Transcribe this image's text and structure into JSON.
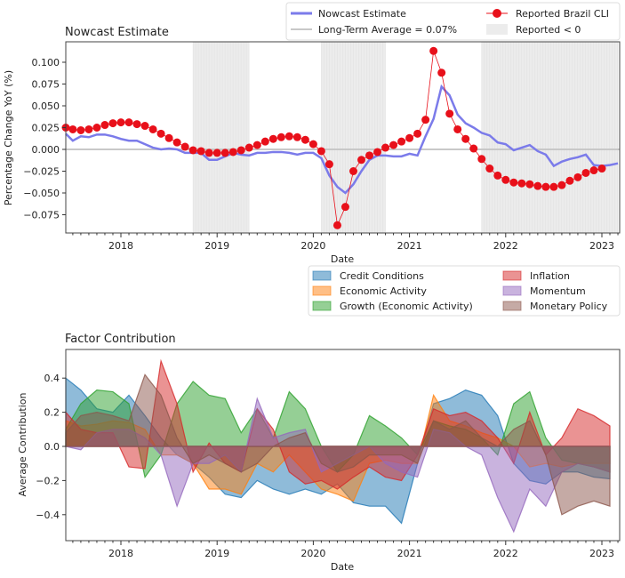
{
  "chart_data": [
    {
      "type": "line",
      "title": "Nowcast Estimate",
      "xlabel": "Date",
      "ylabel": "Percentage Change YoY (%)",
      "xlim": [
        "2017-06",
        "2023-03"
      ],
      "ylim": [
        -0.096,
        0.123
      ],
      "x_ticks": [
        "2018",
        "2019",
        "2020",
        "2021",
        "2022",
        "2023"
      ],
      "y_ticks": [
        "0.100",
        "0.075",
        "0.050",
        "0.025",
        "0.000",
        "−0.025",
        "−0.050",
        "−0.075"
      ],
      "y_tick_values": [
        0.1,
        0.075,
        0.05,
        0.025,
        0,
        -0.025,
        -0.05,
        -0.075
      ],
      "legend_position": "top-right",
      "legend": {
        "nowcast": "Nowcast Estimate",
        "long_term": "Long-Term Average = 0.07%",
        "reported": "Reported Brazil CLI",
        "shaded": "Reported < 0"
      },
      "colors": {
        "nowcast": "#7b7bea",
        "reported": "#e8101a",
        "long_term": "#c8c8c8",
        "shaded": "#ececec"
      },
      "shaded_regions": [
        [
          "2018-10",
          "2019-05"
        ],
        [
          "2020-02",
          "2020-10"
        ],
        [
          "2021-10",
          "2023-03"
        ]
      ],
      "long_term_average_value": 0,
      "series": [
        {
          "name": "Nowcast Estimate",
          "style": "line",
          "x": [
            "2017-06",
            "2017-07",
            "2017-08",
            "2017-09",
            "2017-10",
            "2017-11",
            "2017-12",
            "2018-01",
            "2018-02",
            "2018-03",
            "2018-04",
            "2018-05",
            "2018-06",
            "2018-07",
            "2018-08",
            "2018-09",
            "2018-10",
            "2018-11",
            "2018-12",
            "2019-01",
            "2019-02",
            "2019-03",
            "2019-04",
            "2019-05",
            "2019-06",
            "2019-07",
            "2019-08",
            "2019-09",
            "2019-10",
            "2019-11",
            "2019-12",
            "2020-01",
            "2020-02",
            "2020-03",
            "2020-04",
            "2020-05",
            "2020-06",
            "2020-07",
            "2020-08",
            "2020-09",
            "2020-10",
            "2020-11",
            "2020-12",
            "2021-01",
            "2021-02",
            "2021-03",
            "2021-04",
            "2021-05",
            "2021-06",
            "2021-07",
            "2021-08",
            "2021-09",
            "2021-10",
            "2021-11",
            "2021-12",
            "2022-01",
            "2022-02",
            "2022-03",
            "2022-04",
            "2022-05",
            "2022-06",
            "2022-07",
            "2022-08",
            "2022-09",
            "2022-10",
            "2022-11",
            "2022-12",
            "2023-01",
            "2023-02",
            "2023-03"
          ],
          "y": [
            0.018,
            0.01,
            0.015,
            0.014,
            0.017,
            0.017,
            0.015,
            0.012,
            0.01,
            0.01,
            0.006,
            0.002,
            0.0,
            0.001,
            0.0,
            -0.004,
            -0.004,
            -0.004,
            -0.012,
            -0.012,
            -0.008,
            -0.004,
            -0.006,
            -0.007,
            -0.004,
            -0.004,
            -0.003,
            -0.003,
            -0.004,
            -0.006,
            -0.004,
            -0.004,
            -0.01,
            -0.03,
            -0.043,
            -0.05,
            -0.04,
            -0.025,
            -0.012,
            -0.007,
            -0.007,
            -0.008,
            -0.008,
            -0.005,
            -0.007,
            0.015,
            0.035,
            0.072,
            0.062,
            0.04,
            0.03,
            0.025,
            0.019,
            0.016,
            0.008,
            0.006,
            -0.001,
            0.002,
            0.005,
            -0.002,
            -0.006,
            -0.019,
            -0.014,
            -0.011,
            -0.009,
            -0.006,
            -0.018,
            -0.019,
            -0.018,
            -0.016
          ]
        },
        {
          "name": "Reported Brazil CLI",
          "style": "line+markers",
          "x": [
            "2017-06",
            "2017-07",
            "2017-08",
            "2017-09",
            "2017-10",
            "2017-11",
            "2017-12",
            "2018-01",
            "2018-02",
            "2018-03",
            "2018-04",
            "2018-05",
            "2018-06",
            "2018-07",
            "2018-08",
            "2018-09",
            "2018-10",
            "2018-11",
            "2018-12",
            "2019-01",
            "2019-02",
            "2019-03",
            "2019-04",
            "2019-05",
            "2019-06",
            "2019-07",
            "2019-08",
            "2019-09",
            "2019-10",
            "2019-11",
            "2019-12",
            "2020-01",
            "2020-02",
            "2020-03",
            "2020-04",
            "2020-05",
            "2020-06",
            "2020-07",
            "2020-08",
            "2020-09",
            "2020-10",
            "2020-11",
            "2020-12",
            "2021-01",
            "2021-02",
            "2021-03",
            "2021-04",
            "2021-05",
            "2021-06",
            "2021-07",
            "2021-08",
            "2021-09",
            "2021-10",
            "2021-11",
            "2021-12",
            "2022-01",
            "2022-02",
            "2022-03",
            "2022-04",
            "2022-05",
            "2022-06",
            "2022-07",
            "2022-08",
            "2022-09",
            "2022-10",
            "2022-11",
            "2022-12",
            "2023-01"
          ],
          "y": [
            0.025,
            0.023,
            0.022,
            0.023,
            0.025,
            0.028,
            0.03,
            0.031,
            0.031,
            0.029,
            0.027,
            0.023,
            0.018,
            0.013,
            0.008,
            0.003,
            -0.001,
            -0.002,
            -0.004,
            -0.004,
            -0.004,
            -0.003,
            -0.001,
            0.002,
            0.005,
            0.009,
            0.012,
            0.014,
            0.015,
            0.014,
            0.011,
            0.006,
            -0.002,
            -0.017,
            -0.087,
            -0.066,
            -0.025,
            -0.012,
            -0.007,
            -0.003,
            0.002,
            0.005,
            0.009,
            0.013,
            0.018,
            0.034,
            0.113,
            0.088,
            0.041,
            0.023,
            0.012,
            0.001,
            -0.011,
            -0.022,
            -0.03,
            -0.035,
            -0.038,
            -0.039,
            -0.04,
            -0.042,
            -0.043,
            -0.043,
            -0.041,
            -0.036,
            -0.032,
            -0.027,
            -0.024,
            -0.022
          ]
        }
      ]
    },
    {
      "type": "area",
      "title": "Factor Contribution",
      "xlabel": "Date",
      "ylabel": "Average Contribution",
      "xlim": [
        "2017-06",
        "2023-03"
      ],
      "ylim": [
        -0.55,
        0.57
      ],
      "x_ticks": [
        "2018",
        "2019",
        "2020",
        "2021",
        "2022",
        "2023"
      ],
      "y_ticks": [
        "0.4",
        "0.2",
        "0.0",
        "−0.2",
        "−0.4"
      ],
      "y_tick_values": [
        0.4,
        0.2,
        0,
        -0.2,
        -0.4
      ],
      "legend_position": "top-right (above plot)",
      "x": [
        "2017-06",
        "2017-08",
        "2017-10",
        "2017-12",
        "2018-02",
        "2018-04",
        "2018-06",
        "2018-08",
        "2018-10",
        "2018-12",
        "2019-02",
        "2019-04",
        "2019-06",
        "2019-08",
        "2019-10",
        "2019-12",
        "2020-02",
        "2020-04",
        "2020-06",
        "2020-08",
        "2020-10",
        "2020-12",
        "2021-02",
        "2021-04",
        "2021-06",
        "2021-08",
        "2021-10",
        "2021-12",
        "2022-02",
        "2022-04",
        "2022-06",
        "2022-08",
        "2022-10",
        "2022-12",
        "2023-02"
      ],
      "series": [
        {
          "name": "Credit Conditions",
          "color": "#1f77b4",
          "values": [
            0.4,
            0.33,
            0.22,
            0.2,
            0.3,
            0.18,
            0.05,
            -0.05,
            -0.1,
            -0.18,
            -0.28,
            -0.3,
            -0.2,
            -0.25,
            -0.28,
            -0.25,
            -0.28,
            -0.22,
            -0.33,
            -0.35,
            -0.35,
            -0.45,
            -0.1,
            0.25,
            0.28,
            0.33,
            0.3,
            0.18,
            -0.1,
            -0.2,
            -0.22,
            -0.15,
            -0.15,
            -0.18,
            -0.19
          ]
        },
        {
          "name": "Economic Activity",
          "color": "#ff7f0e",
          "values": [
            0.15,
            0.12,
            0.13,
            0.15,
            0.14,
            0.1,
            -0.05,
            -0.05,
            -0.1,
            -0.25,
            -0.25,
            -0.28,
            -0.1,
            -0.15,
            -0.05,
            -0.15,
            -0.25,
            -0.28,
            -0.32,
            -0.1,
            -0.08,
            -0.1,
            -0.1,
            0.3,
            0.15,
            0.12,
            0.08,
            0.05,
            0.0,
            -0.12,
            -0.1,
            -0.12,
            -0.1,
            -0.1,
            -0.1
          ]
        },
        {
          "name": "Growth (Economic Activity)",
          "color": "#2ca02c",
          "values": [
            0.1,
            0.25,
            0.33,
            0.32,
            0.25,
            -0.18,
            -0.05,
            0.25,
            0.38,
            0.3,
            0.28,
            0.08,
            0.22,
            0.05,
            0.32,
            0.22,
            0.0,
            -0.15,
            -0.05,
            0.18,
            0.12,
            0.05,
            -0.05,
            0.15,
            0.12,
            0.1,
            0.05,
            -0.05,
            0.25,
            0.32,
            0.05,
            -0.08,
            -0.1,
            -0.12,
            -0.15
          ]
        },
        {
          "name": "Inflation",
          "color": "#d62728",
          "values": [
            0.2,
            0.1,
            0.08,
            0.08,
            -0.12,
            -0.13,
            0.5,
            0.25,
            -0.15,
            0.02,
            -0.1,
            -0.15,
            0.22,
            0.1,
            -0.15,
            -0.22,
            -0.2,
            -0.25,
            -0.18,
            -0.12,
            -0.18,
            -0.2,
            -0.05,
            0.22,
            0.18,
            0.2,
            0.15,
            0.05,
            -0.1,
            0.2,
            -0.05,
            0.05,
            0.22,
            0.18,
            0.12
          ]
        },
        {
          "name": "Momentum",
          "color": "#9467bd",
          "values": [
            0.0,
            -0.02,
            0.08,
            0.1,
            0.1,
            0.05,
            -0.05,
            -0.35,
            -0.1,
            -0.1,
            -0.05,
            -0.15,
            0.28,
            0.05,
            0.08,
            0.1,
            -0.15,
            -0.1,
            -0.05,
            0.0,
            -0.1,
            -0.15,
            -0.18,
            0.1,
            0.08,
            0.0,
            -0.05,
            -0.3,
            -0.5,
            -0.25,
            -0.35,
            -0.15,
            -0.1,
            -0.12,
            -0.15
          ]
        },
        {
          "name": "Monetary Policy",
          "color": "#8c564b",
          "values": [
            0.08,
            0.18,
            0.2,
            0.18,
            0.15,
            0.42,
            0.3,
            0.05,
            -0.1,
            -0.05,
            -0.1,
            -0.15,
            -0.1,
            0.0,
            0.05,
            0.08,
            -0.1,
            -0.15,
            -0.12,
            -0.05,
            -0.05,
            -0.05,
            -0.1,
            0.15,
            0.1,
            0.15,
            0.05,
            0.0,
            0.1,
            0.15,
            -0.05,
            -0.4,
            -0.35,
            -0.32,
            -0.35
          ]
        }
      ]
    }
  ]
}
